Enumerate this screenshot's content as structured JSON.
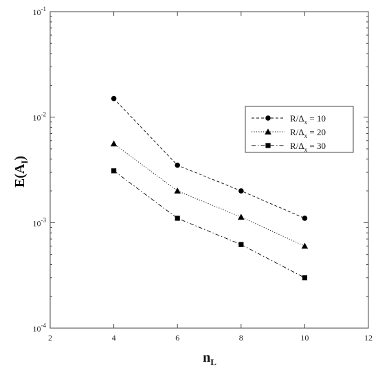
{
  "chart_data": {
    "type": "line",
    "x_scale": "linear",
    "y_scale": "log",
    "xlim": [
      2,
      12
    ],
    "ylim": [
      0.0001,
      0.1
    ],
    "x_ticks": [
      2,
      4,
      6,
      8,
      10,
      12
    ],
    "x_tick_labels": [
      "2",
      "4",
      "6",
      "8",
      "10",
      "12"
    ],
    "y_ticks": [
      0.0001,
      0.001,
      0.01,
      0.1
    ],
    "y_tick_labels": [
      {
        "base": "10",
        "exp": "-4"
      },
      {
        "base": "10",
        "exp": "-3"
      },
      {
        "base": "10",
        "exp": "-2"
      },
      {
        "base": "10",
        "exp": "-1"
      }
    ],
    "xlabel": {
      "main": "n",
      "sub": "L"
    },
    "ylabel": {
      "main": "E(A",
      "sub": "I",
      "close": ")"
    },
    "grid": false,
    "legend_position": "right",
    "x": [
      4,
      6,
      8,
      10
    ],
    "series": [
      {
        "name_parts": {
          "pre": "R/Δ",
          "sub": "x",
          "post": " =  10"
        },
        "marker": "circle",
        "line_style": "dashed",
        "color": "#000000",
        "values": [
          0.015,
          0.0035,
          0.002,
          0.0011
        ]
      },
      {
        "name_parts": {
          "pre": "R/Δ",
          "sub": "x",
          "post": " =  20"
        },
        "marker": "triangle",
        "line_style": "dotted",
        "color": "#000000",
        "values": [
          0.0056,
          0.002,
          0.00113,
          0.0006
        ]
      },
      {
        "name_parts": {
          "pre": "R/Δ",
          "sub": "x",
          "post": " =  30"
        },
        "marker": "square",
        "line_style": "dashdot",
        "color": "#000000",
        "values": [
          0.0031,
          0.0011,
          0.00062,
          0.0003
        ]
      }
    ]
  }
}
